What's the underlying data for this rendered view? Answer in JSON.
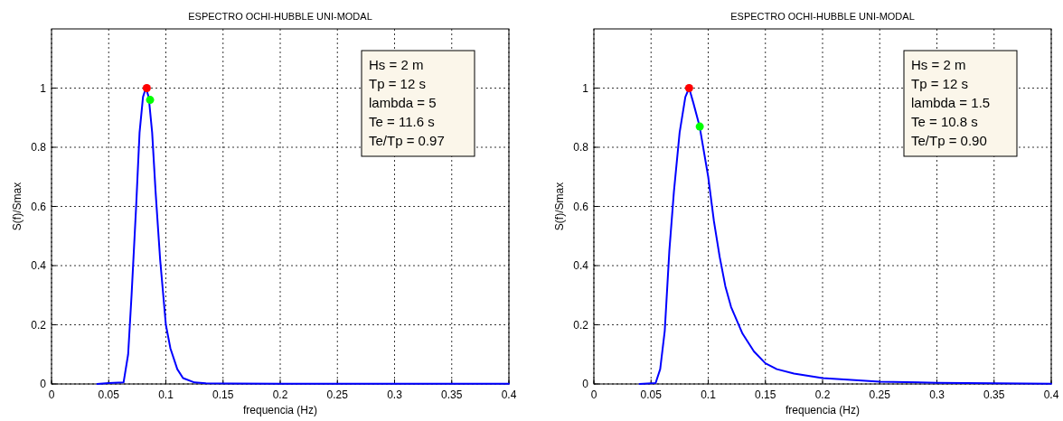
{
  "chart_data": [
    {
      "type": "line",
      "title": "ESPECTRO OCHI-HUBBLE UNI-MODAL",
      "xlabel": "frequencia (Hz)",
      "ylabel": "S(f)/Smax",
      "xlim": [
        0,
        0.4
      ],
      "ylim": [
        0,
        1.2
      ],
      "xticks": [
        0,
        0.05,
        0.1,
        0.15,
        0.2,
        0.25,
        0.3,
        0.35,
        0.4
      ],
      "yticks": [
        0,
        0.2,
        0.4,
        0.6,
        0.8,
        1
      ],
      "grid": true,
      "annotations": [
        "Hs = 2 m",
        "Tp = 12 s",
        "lambda = 5",
        "Te = 11.6 s",
        "Te/Tp = 0.97"
      ],
      "series": [
        {
          "color": "#0000ff",
          "marker": "none",
          "line_style": "solid",
          "x": [
            0.04,
            0.05,
            0.063,
            0.067,
            0.07,
            0.074,
            0.077,
            0.08,
            0.0825,
            0.085,
            0.088,
            0.091,
            0.095,
            0.1,
            0.104,
            0.11,
            0.115,
            0.125,
            0.135,
            0.2,
            0.3,
            0.4
          ],
          "values": [
            0,
            0.003,
            0.005,
            0.1,
            0.3,
            0.6,
            0.85,
            0.97,
            1.0,
            0.97,
            0.85,
            0.65,
            0.42,
            0.2,
            0.12,
            0.05,
            0.02,
            0.005,
            0.002,
            0.001,
            0.001,
            0.001
          ]
        },
        {
          "type": "scatter",
          "color": "#ff0000",
          "marker": "circle",
          "x": [
            0.0833
          ],
          "values": [
            1.0
          ]
        },
        {
          "type": "scatter",
          "color": "#00ff00",
          "marker": "circle",
          "x": [
            0.0862
          ],
          "values": [
            0.96
          ]
        }
      ]
    },
    {
      "type": "line",
      "title": "ESPECTRO OCHI-HUBBLE UNI-MODAL",
      "xlabel": "frequencia (Hz)",
      "ylabel": "S(f)/Smax",
      "xlim": [
        0,
        0.4
      ],
      "ylim": [
        0,
        1.2
      ],
      "xticks": [
        0,
        0.05,
        0.1,
        0.15,
        0.2,
        0.25,
        0.3,
        0.35,
        0.4
      ],
      "yticks": [
        0,
        0.2,
        0.4,
        0.6,
        0.8,
        1
      ],
      "grid": true,
      "annotations": [
        "Hs = 2 m",
        "Tp = 12 s",
        "lambda = 1.5",
        "Te = 10.8 s",
        "Te/Tp = 0.90"
      ],
      "series": [
        {
          "color": "#0000ff",
          "marker": "none",
          "line_style": "solid",
          "x": [
            0.04,
            0.054,
            0.058,
            0.062,
            0.066,
            0.07,
            0.075,
            0.08,
            0.0833,
            0.087,
            0.0925,
            0.1,
            0.105,
            0.11,
            0.115,
            0.12,
            0.13,
            0.14,
            0.15,
            0.16,
            0.175,
            0.2,
            0.25,
            0.3,
            0.4
          ],
          "values": [
            0,
            0.003,
            0.05,
            0.18,
            0.45,
            0.65,
            0.85,
            0.97,
            1.0,
            0.95,
            0.87,
            0.7,
            0.55,
            0.43,
            0.33,
            0.26,
            0.17,
            0.11,
            0.07,
            0.05,
            0.035,
            0.02,
            0.008,
            0.004,
            0.001
          ]
        },
        {
          "type": "scatter",
          "color": "#ff0000",
          "marker": "circle",
          "x": [
            0.0833
          ],
          "values": [
            1.0
          ]
        },
        {
          "type": "scatter",
          "color": "#00ff00",
          "marker": "circle",
          "x": [
            0.0926
          ],
          "values": [
            0.87
          ]
        }
      ]
    }
  ]
}
